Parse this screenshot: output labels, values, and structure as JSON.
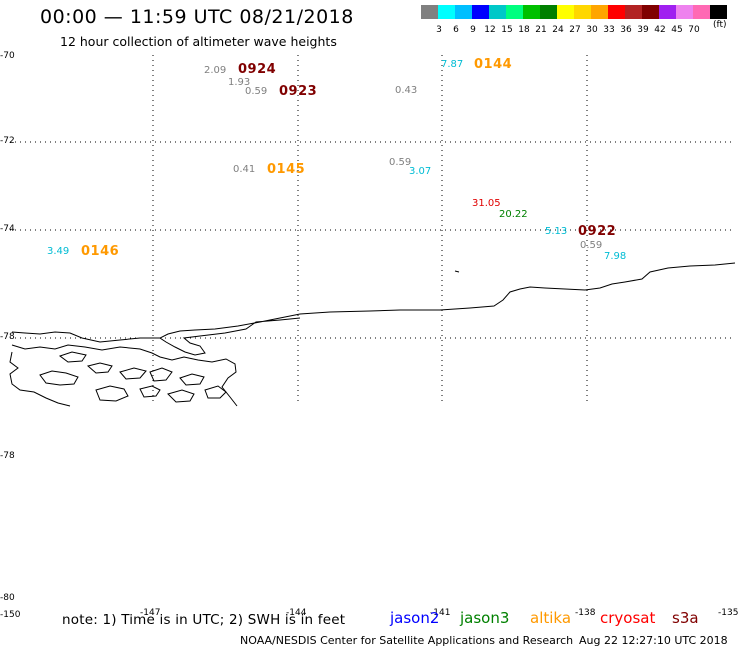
{
  "header": {
    "title": "00:00 — 11:59 UTC 08/21/2018",
    "subtitle": "12 hour collection of altimeter wave heights"
  },
  "legend": {
    "colors": [
      "#808080",
      "#00ffff",
      "#00bfff",
      "#0000ff",
      "#00c8c8",
      "#00ff7f",
      "#00c000",
      "#008000",
      "#ffff00",
      "#ffd700",
      "#ffa500",
      "#ff0000",
      "#b22222",
      "#800000",
      "#a020f0",
      "#ee82ee",
      "#ff69b4",
      "#000000"
    ],
    "labels": [
      "3",
      "6",
      "9",
      "12",
      "15",
      "18",
      "21",
      "24",
      "27",
      "30",
      "33",
      "36",
      "39",
      "42",
      "45",
      "70"
    ],
    "unit": "(ft)"
  },
  "axes": {
    "y_labels": [
      "-70",
      "-72",
      "-74",
      "-78",
      "-78",
      "-80",
      "-150"
    ],
    "x_labels": [
      "-147",
      "-144",
      "-141",
      "-138",
      "-135"
    ]
  },
  "observations": [
    {
      "text": "2.09",
      "color": "#808080"
    },
    {
      "text": "1.93",
      "color": "#808080"
    },
    {
      "text": "0.59",
      "color": "#808080"
    },
    {
      "text": "0.43",
      "color": "#808080"
    },
    {
      "text": "7.87",
      "color": "#00bcd4"
    },
    {
      "text": "0.41",
      "color": "#808080"
    },
    {
      "text": "0.59",
      "color": "#808080"
    },
    {
      "text": "3.07",
      "color": "#00bcd4"
    },
    {
      "text": "31.05",
      "color": "#e00000"
    },
    {
      "text": "20.22",
      "color": "#008000"
    },
    {
      "text": "5.13",
      "color": "#00bcd4"
    },
    {
      "text": "0.59",
      "color": "#808080"
    },
    {
      "text": "7.98",
      "color": "#00bcd4"
    },
    {
      "text": "3.49",
      "color": "#00bcd4"
    }
  ],
  "times": [
    {
      "text": "0924",
      "color": "#800000"
    },
    {
      "text": "0923",
      "color": "#800000"
    },
    {
      "text": "0144",
      "color": "#ff9900"
    },
    {
      "text": "0145",
      "color": "#ff9900"
    },
    {
      "text": "0922",
      "color": "#800000"
    },
    {
      "text": "0146",
      "color": "#ff9900"
    }
  ],
  "footer": {
    "note": "note: 1) Time is in UTC; 2) SWH is in feet",
    "satellites": [
      {
        "name": "jason2",
        "color": "#0000ff"
      },
      {
        "name": "jason3",
        "color": "#008000"
      },
      {
        "name": "altika",
        "color": "#ff9900"
      },
      {
        "name": "cryosat",
        "color": "#ff0000"
      },
      {
        "name": "s3a",
        "color": "#800000"
      }
    ],
    "credit": "NOAA/NESDIS Center for Satellite Applications and Research",
    "timestamp": "Aug 22 12:27:10 UTC 2018"
  }
}
